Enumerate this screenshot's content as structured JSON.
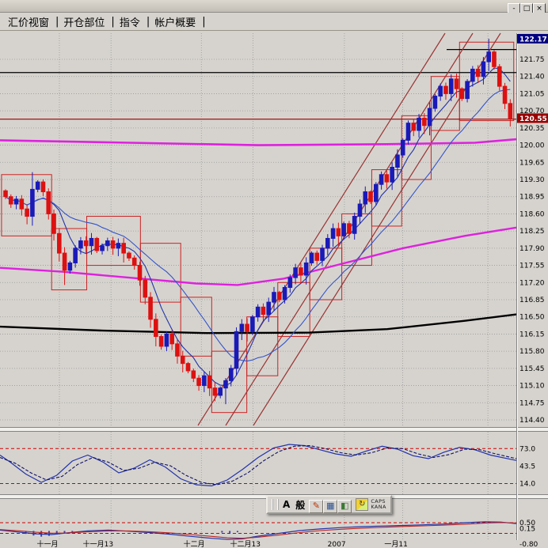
{
  "window": {
    "controls": [
      {
        "name": "minimize",
        "glyph": "-"
      },
      {
        "name": "restore",
        "glyph": "□"
      },
      {
        "name": "close",
        "glyph": "×"
      }
    ]
  },
  "menu": {
    "separator": "|",
    "items": [
      {
        "label": "汇价视窗"
      },
      {
        "label": "开仓部位"
      },
      {
        "label": "指令"
      },
      {
        "label": "帐户概要"
      }
    ]
  },
  "ime": {
    "mode_alpha": "A",
    "mode_general": "般",
    "caps": "CAPS",
    "kana": "KANA",
    "buttons": [
      {
        "name": "ime-pen-icon",
        "glyph": "✎",
        "cls": "ime-pen"
      },
      {
        "name": "ime-pad-icon",
        "glyph": "▦",
        "cls": "ime-pad"
      },
      {
        "name": "ime-tools-icon",
        "glyph": "◧",
        "cls": "ime-tools"
      }
    ]
  },
  "chart_data": {
    "type": "candlestick",
    "colors": {
      "bg": "#d6d3ce",
      "grid": "#9a9a9a",
      "up": "#1a1ab8",
      "down": "#dd1111",
      "ma_fast": "#2233aa",
      "ma_slow": "#3355cc",
      "ma_mid": "#dd22dd",
      "ma_long": "#dd22dd",
      "ma_base": "#000000",
      "box": "#cc2222",
      "trend": "#993333",
      "dashed": "#cc0000",
      "marker_high_bg": "#000080",
      "marker_last_bg": "#990000",
      "stoch_k": "#2233aa",
      "stoch_d": "#111166",
      "macd_line": "#2233aa",
      "macd_signal": "#bb2222",
      "hist": "#3344bb"
    },
    "price_axis": {
      "grid_step": 0.35,
      "levels": [
        121.75,
        121.4,
        121.05,
        120.7,
        120.35,
        120.0,
        119.65,
        119.3,
        118.95,
        118.6,
        118.25,
        117.9,
        117.55,
        117.2,
        116.85,
        116.5,
        116.15,
        115.8,
        115.45,
        115.1,
        114.75,
        114.4
      ],
      "markers": [
        {
          "label": "122.17",
          "price": 122.17,
          "bg": "#000080"
        },
        {
          "label": "120.55",
          "price": 120.55,
          "bg": "#990000"
        }
      ]
    },
    "x_axis": {
      "labels": [
        {
          "pos": 0.092,
          "label": "十一月"
        },
        {
          "pos": 0.19,
          "label": "十一月13"
        },
        {
          "pos": 0.376,
          "label": "十二月"
        },
        {
          "pos": 0.475,
          "label": "十二月13"
        },
        {
          "pos": 0.652,
          "label": "2007"
        },
        {
          "pos": 0.767,
          "label": "一月11"
        }
      ],
      "gridlines": [
        0.115,
        0.215,
        0.39,
        0.49,
        0.667,
        0.78,
        0.945
      ]
    },
    "candles": {
      "closes": [
        118.95,
        118.8,
        118.9,
        118.7,
        118.55,
        119.1,
        119.25,
        119.05,
        118.6,
        118.2,
        117.8,
        117.45,
        117.6,
        117.9,
        118.05,
        117.95,
        118.1,
        117.85,
        117.95,
        118.05,
        117.9,
        118.0,
        117.8,
        117.7,
        117.55,
        117.25,
        116.9,
        116.45,
        116.1,
        115.9,
        116.15,
        115.95,
        115.7,
        115.55,
        115.4,
        115.25,
        115.1,
        115.3,
        115.05,
        114.9,
        115.05,
        115.2,
        115.45,
        116.2,
        116.35,
        116.2,
        116.5,
        116.7,
        116.55,
        116.8,
        117.0,
        116.85,
        117.1,
        117.3,
        117.5,
        117.35,
        117.6,
        117.8,
        117.65,
        117.9,
        118.1,
        118.3,
        118.15,
        118.4,
        118.2,
        118.55,
        118.8,
        119.05,
        118.85,
        119.2,
        119.4,
        119.25,
        119.55,
        119.8,
        120.1,
        120.45,
        120.3,
        120.55,
        120.4,
        120.75,
        121.0,
        121.2,
        121.05,
        121.35,
        121.15,
        120.95,
        121.3,
        121.55,
        121.4,
        121.7,
        121.9,
        121.6,
        121.2,
        120.85,
        120.55
      ],
      "wick_overrides": {
        "5": {
          "high": 119.45
        },
        "11": {
          "low": 117.15
        },
        "39": {
          "low": 114.78
        },
        "41": {
          "low": 114.72
        },
        "90": {
          "high": 122.17
        },
        "94": {
          "low": 120.38
        }
      }
    },
    "overlays": {
      "ma_long_flat": [
        [
          0,
          120.1
        ],
        [
          0.25,
          120.05
        ],
        [
          0.5,
          120.0
        ],
        [
          0.75,
          120.02
        ],
        [
          0.92,
          120.05
        ],
        [
          1,
          120.12
        ]
      ],
      "ma_mid": [
        [
          0,
          117.5
        ],
        [
          0.12,
          117.42
        ],
        [
          0.25,
          117.3
        ],
        [
          0.38,
          117.18
        ],
        [
          0.46,
          117.15
        ],
        [
          0.55,
          117.28
        ],
        [
          0.65,
          117.55
        ],
        [
          0.78,
          117.9
        ],
        [
          0.9,
          118.15
        ],
        [
          1,
          118.32
        ]
      ],
      "ma_base": [
        [
          0,
          116.3
        ],
        [
          0.2,
          116.22
        ],
        [
          0.4,
          116.17
        ],
        [
          0.6,
          116.18
        ],
        [
          0.75,
          116.25
        ],
        [
          0.9,
          116.42
        ],
        [
          1,
          116.55
        ]
      ]
    },
    "hlines": [
      {
        "price": 121.48,
        "x0": 0,
        "x1": 1,
        "color": "#000000"
      },
      {
        "price": 120.53,
        "x0": 0,
        "x1": 1,
        "color": "#990000"
      },
      {
        "price": 121.95,
        "x0": 0.865,
        "x1": 1,
        "color": "#000000"
      }
    ],
    "trendlines": [
      [
        250,
        538,
        562,
        42
      ],
      [
        285,
        538,
        597,
        42
      ],
      [
        320,
        538,
        632,
        42
      ]
    ],
    "boxes": [
      [
        0.003,
        0.1,
        119.4,
        118.15
      ],
      [
        0.1,
        0.168,
        118.3,
        117.05
      ],
      [
        0.168,
        0.272,
        118.55,
        117.55
      ],
      [
        0.272,
        0.35,
        118.0,
        116.8
      ],
      [
        0.35,
        0.41,
        116.9,
        115.7
      ],
      [
        0.41,
        0.478,
        115.8,
        114.55
      ],
      [
        0.478,
        0.538,
        116.5,
        115.3
      ],
      [
        0.538,
        0.6,
        117.2,
        116.1
      ],
      [
        0.6,
        0.662,
        117.9,
        116.85
      ],
      [
        0.662,
        0.72,
        118.6,
        117.55
      ],
      [
        0.72,
        0.778,
        119.5,
        118.35
      ],
      [
        0.778,
        0.835,
        120.6,
        119.3
      ],
      [
        0.835,
        0.89,
        121.4,
        120.3
      ],
      [
        0.89,
        0.995,
        122.1,
        120.5
      ]
    ],
    "stochastic": {
      "levels": [
        {
          "v": 73,
          "label": "73.0",
          "line": true
        },
        {
          "v": 43.5,
          "label": "43.5",
          "line": false
        },
        {
          "v": 14,
          "label": "14.0",
          "line": true
        }
      ],
      "k": [
        [
          0,
          62
        ],
        [
          0.02,
          50
        ],
        [
          0.05,
          30
        ],
        [
          0.08,
          16
        ],
        [
          0.11,
          28
        ],
        [
          0.14,
          52
        ],
        [
          0.17,
          62
        ],
        [
          0.2,
          50
        ],
        [
          0.23,
          32
        ],
        [
          0.26,
          40
        ],
        [
          0.29,
          54
        ],
        [
          0.32,
          42
        ],
        [
          0.35,
          22
        ],
        [
          0.38,
          12
        ],
        [
          0.41,
          10
        ],
        [
          0.44,
          20
        ],
        [
          0.47,
          38
        ],
        [
          0.5,
          58
        ],
        [
          0.53,
          74
        ],
        [
          0.56,
          80
        ],
        [
          0.59,
          78
        ],
        [
          0.62,
          71
        ],
        [
          0.65,
          64
        ],
        [
          0.68,
          60
        ],
        [
          0.71,
          69
        ],
        [
          0.74,
          77
        ],
        [
          0.77,
          72
        ],
        [
          0.8,
          61
        ],
        [
          0.83,
          56
        ],
        [
          0.86,
          67
        ],
        [
          0.89,
          75
        ],
        [
          0.92,
          71
        ],
        [
          0.95,
          62
        ],
        [
          1,
          53
        ]
      ],
      "d": [
        [
          0,
          58
        ],
        [
          0.03,
          48
        ],
        [
          0.06,
          32
        ],
        [
          0.09,
          20
        ],
        [
          0.12,
          26
        ],
        [
          0.15,
          46
        ],
        [
          0.18,
          58
        ],
        [
          0.21,
          50
        ],
        [
          0.24,
          36
        ],
        [
          0.27,
          40
        ],
        [
          0.3,
          50
        ],
        [
          0.33,
          44
        ],
        [
          0.36,
          28
        ],
        [
          0.39,
          16
        ],
        [
          0.42,
          12
        ],
        [
          0.45,
          18
        ],
        [
          0.48,
          32
        ],
        [
          0.51,
          52
        ],
        [
          0.54,
          68
        ],
        [
          0.57,
          77
        ],
        [
          0.6,
          78
        ],
        [
          0.63,
          73
        ],
        [
          0.66,
          66
        ],
        [
          0.69,
          62
        ],
        [
          0.72,
          66
        ],
        [
          0.75,
          74
        ],
        [
          0.78,
          73
        ],
        [
          0.81,
          64
        ],
        [
          0.84,
          58
        ],
        [
          0.87,
          63
        ],
        [
          0.9,
          72
        ],
        [
          0.93,
          71
        ],
        [
          0.96,
          64
        ],
        [
          1,
          56
        ]
      ]
    },
    "macd": {
      "levels": [
        {
          "v": 0.5,
          "label": "0.50",
          "line": true
        },
        {
          "v": 0.15,
          "label": "0.15",
          "line": false
        },
        {
          "v": -0.15,
          "label": "",
          "line": true
        },
        {
          "v": -0.8,
          "label": "-0.80",
          "line": false
        }
      ],
      "macd": [
        [
          0,
          0.05
        ],
        [
          0.04,
          -0.08
        ],
        [
          0.07,
          -0.18
        ],
        [
          0.1,
          -0.22
        ],
        [
          0.13,
          -0.12
        ],
        [
          0.17,
          0.0
        ],
        [
          0.21,
          0.05
        ],
        [
          0.25,
          -0.02
        ],
        [
          0.29,
          -0.1
        ],
        [
          0.33,
          -0.2
        ],
        [
          0.37,
          -0.33
        ],
        [
          0.41,
          -0.45
        ],
        [
          0.44,
          -0.52
        ],
        [
          0.47,
          -0.48
        ],
        [
          0.5,
          -0.32
        ],
        [
          0.54,
          -0.15
        ],
        [
          0.58,
          0.02
        ],
        [
          0.62,
          0.12
        ],
        [
          0.66,
          0.2
        ],
        [
          0.7,
          0.26
        ],
        [
          0.74,
          0.3
        ],
        [
          0.78,
          0.33
        ],
        [
          0.82,
          0.37
        ],
        [
          0.86,
          0.42
        ],
        [
          0.9,
          0.5
        ],
        [
          0.94,
          0.56
        ],
        [
          0.97,
          0.54
        ],
        [
          1,
          0.45
        ]
      ],
      "signal": [
        [
          0,
          0.08
        ],
        [
          0.04,
          0.0
        ],
        [
          0.07,
          -0.08
        ],
        [
          0.1,
          -0.14
        ],
        [
          0.13,
          -0.13
        ],
        [
          0.17,
          -0.06
        ],
        [
          0.21,
          0.0
        ],
        [
          0.25,
          0.0
        ],
        [
          0.29,
          -0.05
        ],
        [
          0.33,
          -0.12
        ],
        [
          0.37,
          -0.22
        ],
        [
          0.41,
          -0.33
        ],
        [
          0.44,
          -0.42
        ],
        [
          0.47,
          -0.45
        ],
        [
          0.5,
          -0.38
        ],
        [
          0.54,
          -0.25
        ],
        [
          0.58,
          -0.1
        ],
        [
          0.62,
          0.02
        ],
        [
          0.66,
          0.1
        ],
        [
          0.7,
          0.17
        ],
        [
          0.74,
          0.22
        ],
        [
          0.78,
          0.27
        ],
        [
          0.82,
          0.31
        ],
        [
          0.86,
          0.35
        ],
        [
          0.9,
          0.41
        ],
        [
          0.94,
          0.48
        ],
        [
          0.97,
          0.51
        ],
        [
          1,
          0.48
        ]
      ],
      "hist": [
        [
          0.05,
          -0.18
        ],
        [
          0.065,
          -0.28
        ],
        [
          0.08,
          -0.35
        ],
        [
          0.095,
          -0.3
        ],
        [
          0.11,
          -0.22
        ],
        [
          0.125,
          -0.12
        ],
        [
          0.14,
          -0.06
        ],
        [
          0.43,
          -0.1
        ],
        [
          0.445,
          -0.12
        ],
        [
          0.46,
          -0.08
        ]
      ]
    }
  }
}
